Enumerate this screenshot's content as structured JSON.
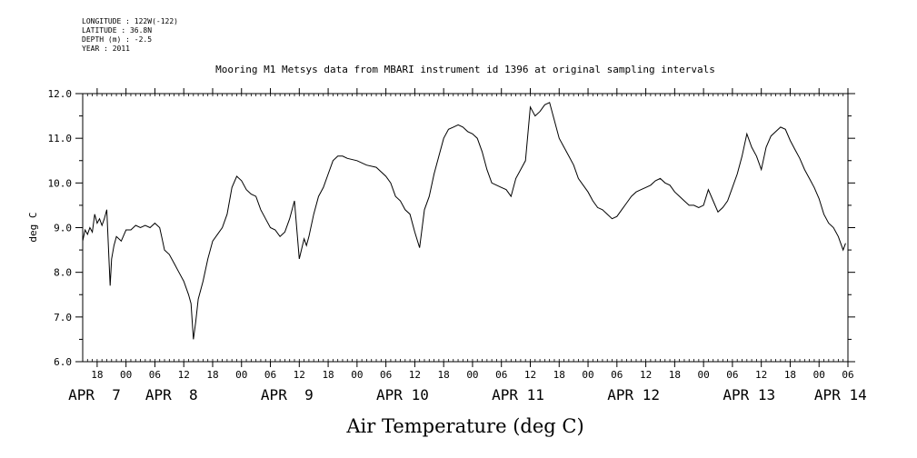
{
  "metadata": {
    "longitude": "LONGITUDE : 122W(-122)",
    "latitude": "LATITUDE : 36.8N",
    "depth": "DEPTH (m) : -2.5",
    "year": "YEAR : 2011"
  },
  "chart_data": {
    "type": "line",
    "title": "Mooring M1 Metsys data from MBARI instrument id 1396 at original sampling intervals",
    "xlabel": "Air Temperature (deg C)",
    "ylabel": "deg C",
    "ylim": [
      6.0,
      12.0
    ],
    "xlim_hours": [
      -9,
      150
    ],
    "y_ticks": [
      "6.0",
      "7.0",
      "8.0",
      "9.0",
      "10.0",
      "11.0",
      "12.0"
    ],
    "hour_ticks": [
      {
        "h": -6,
        "label": "18"
      },
      {
        "h": 0,
        "label": "00"
      },
      {
        "h": 6,
        "label": "06"
      },
      {
        "h": 12,
        "label": "12"
      },
      {
        "h": 18,
        "label": "18"
      },
      {
        "h": 24,
        "label": "00"
      },
      {
        "h": 30,
        "label": "06"
      },
      {
        "h": 36,
        "label": "12"
      },
      {
        "h": 42,
        "label": "18"
      },
      {
        "h": 48,
        "label": "00"
      },
      {
        "h": 54,
        "label": "06"
      },
      {
        "h": 60,
        "label": "12"
      },
      {
        "h": 66,
        "label": "18"
      },
      {
        "h": 72,
        "label": "00"
      },
      {
        "h": 78,
        "label": "06"
      },
      {
        "h": 84,
        "label": "12"
      },
      {
        "h": 90,
        "label": "18"
      },
      {
        "h": 96,
        "label": "00"
      },
      {
        "h": 102,
        "label": "06"
      },
      {
        "h": 108,
        "label": "12"
      },
      {
        "h": 114,
        "label": "18"
      },
      {
        "h": 120,
        "label": "00"
      },
      {
        "h": 126,
        "label": "06"
      },
      {
        "h": 132,
        "label": "12"
      },
      {
        "h": 138,
        "label": "18"
      },
      {
        "h": 144,
        "label": "00"
      },
      {
        "h": 150,
        "label": "06"
      },
      {
        "h": 156,
        "label": "12"
      }
    ],
    "date_labels": [
      {
        "h": -12,
        "label": "APR  7"
      },
      {
        "h": 4,
        "label": "APR  8"
      },
      {
        "h": 28,
        "label": "APR  9"
      },
      {
        "h": 52,
        "label": "APR 10"
      },
      {
        "h": 76,
        "label": "APR 11"
      },
      {
        "h": 100,
        "label": "APR 12"
      },
      {
        "h": 124,
        "label": "APR 13"
      },
      {
        "h": 143,
        "label": "APR 14"
      }
    ],
    "series": [
      {
        "x": [
          -9,
          -8.5,
          -8,
          -7.5,
          -7,
          -6.5,
          -6,
          -5.5,
          -5,
          -4.5,
          -4,
          -3.5,
          -3.3,
          -3,
          -2.5,
          -2,
          -1,
          0,
          1,
          2,
          3,
          4,
          5,
          6,
          7,
          7.5,
          8,
          9,
          10,
          11,
          12,
          13,
          13.5,
          14,
          14.5,
          15,
          16,
          17,
          18,
          19,
          20,
          21,
          22,
          23,
          24,
          25,
          26,
          27,
          28,
          29,
          30,
          31,
          32,
          33,
          34,
          35,
          36,
          37,
          37.5,
          38,
          39,
          40,
          41,
          42,
          43,
          44,
          45,
          46,
          48,
          50,
          52,
          54,
          55,
          56,
          57,
          58,
          59,
          60,
          61,
          62,
          63,
          64,
          65,
          66,
          67,
          68,
          69,
          70,
          71,
          72,
          73,
          74,
          75,
          76,
          77,
          78,
          79,
          80,
          81,
          82,
          83,
          84,
          85,
          86,
          87,
          88,
          89,
          90,
          91,
          92,
          93,
          94,
          95,
          96,
          97,
          98,
          99,
          100,
          101,
          102,
          103,
          104,
          105,
          106,
          107,
          108,
          109,
          110,
          111,
          112,
          113,
          114,
          115,
          116,
          117,
          118,
          119,
          120,
          121,
          122,
          123,
          124,
          125,
          126,
          127,
          128,
          129,
          130,
          131,
          132,
          133,
          134,
          135,
          136,
          137,
          138,
          139,
          140,
          141,
          142,
          143,
          144,
          145,
          146,
          147,
          148,
          149,
          149.5
        ],
        "y": [
          8.7,
          8.95,
          8.85,
          9.0,
          8.9,
          9.3,
          9.1,
          9.2,
          9.05,
          9.2,
          9.4,
          8.2,
          7.7,
          8.3,
          8.6,
          8.8,
          8.7,
          8.95,
          8.95,
          9.05,
          9.0,
          9.05,
          9.0,
          9.1,
          9.0,
          8.75,
          8.5,
          8.4,
          8.2,
          8.0,
          7.8,
          7.5,
          7.3,
          6.5,
          6.9,
          7.4,
          7.8,
          8.3,
          8.7,
          8.85,
          9.0,
          9.3,
          9.9,
          10.15,
          10.05,
          9.85,
          9.75,
          9.7,
          9.4,
          9.2,
          9.0,
          8.95,
          8.8,
          8.9,
          9.2,
          9.6,
          8.3,
          8.75,
          8.6,
          8.8,
          9.3,
          9.7,
          9.9,
          10.2,
          10.5,
          10.6,
          10.6,
          10.55,
          10.5,
          10.4,
          10.35,
          10.15,
          10.0,
          9.7,
          9.6,
          9.4,
          9.3,
          8.9,
          8.55,
          9.4,
          9.7,
          10.2,
          10.6,
          11.0,
          11.2,
          11.25,
          11.3,
          11.25,
          11.15,
          11.1,
          11.0,
          10.7,
          10.3,
          10.0,
          9.95,
          9.9,
          9.85,
          9.7,
          10.1,
          10.3,
          10.5,
          11.7,
          11.5,
          11.6,
          11.75,
          11.8,
          11.4,
          11.0,
          10.8,
          10.6,
          10.4,
          10.1,
          9.95,
          9.8,
          9.6,
          9.45,
          9.4,
          9.3,
          9.2,
          9.25,
          9.4,
          9.55,
          9.7,
          9.8,
          9.85,
          9.9,
          9.95,
          10.05,
          10.1,
          10.0,
          9.95,
          9.8,
          9.7,
          9.6,
          9.5,
          9.5,
          9.45,
          9.5,
          9.85,
          9.6,
          9.35,
          9.45,
          9.6,
          9.9,
          10.2,
          10.6,
          11.1,
          10.8,
          10.6,
          10.3,
          10.8,
          11.05,
          11.15,
          11.25,
          11.2,
          10.95,
          10.75,
          10.55,
          10.3,
          10.1,
          9.9,
          9.65,
          9.3,
          9.1,
          9.0,
          8.8,
          8.5,
          8.65
        ]
      }
    ],
    "grid": false,
    "legend": "none"
  }
}
